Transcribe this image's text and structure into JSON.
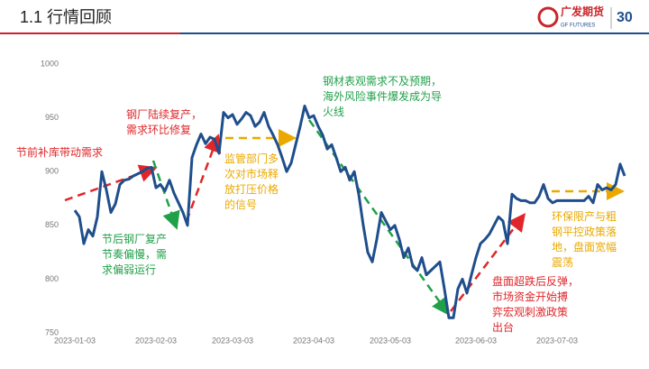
{
  "header": {
    "title": "1.1   行情回顾",
    "logo": {
      "name": "广发期货",
      "sub": "GF FUTURES",
      "anniversary": "30"
    }
  },
  "chart_data": {
    "type": "line",
    "color": "#1f4e8c",
    "x": [
      "2023-01-03",
      null,
      null,
      null,
      null,
      null,
      null,
      null,
      null,
      null,
      null,
      null,
      null,
      null,
      null,
      null,
      null,
      null,
      "2023-02-03",
      null,
      null,
      null,
      null,
      null,
      null,
      null,
      null,
      null,
      null,
      null,
      null,
      null,
      null,
      null,
      null,
      "2023-03-03",
      null,
      null,
      null,
      null,
      null,
      null,
      null,
      null,
      null,
      null,
      null,
      null,
      null,
      null,
      null,
      null,
      null,
      "2023-04-03",
      null,
      null,
      null,
      null,
      null,
      null,
      null,
      null,
      null,
      null,
      null,
      null,
      null,
      null,
      null,
      null,
      "2023-05-03",
      null,
      null,
      null,
      null,
      null,
      null,
      null,
      null,
      null,
      null,
      null,
      null,
      null,
      null,
      null,
      null,
      null,
      null,
      "2023-06-03",
      null,
      null,
      null,
      null,
      null,
      null,
      null,
      null,
      null,
      null,
      null,
      null,
      null,
      null,
      null,
      null,
      null,
      "2023-07-03",
      null,
      null,
      null,
      null,
      null,
      null,
      null,
      null,
      null,
      null,
      null,
      null,
      null,
      null,
      null
    ],
    "values": [
      864,
      858,
      833,
      846,
      840,
      858,
      900,
      883,
      862,
      870,
      888,
      892,
      893,
      896,
      898,
      900,
      903,
      904,
      885,
      888,
      882,
      892,
      880,
      871,
      862,
      850,
      913,
      925,
      935,
      926,
      932,
      930,
      917,
      955,
      950,
      953,
      944,
      949,
      955,
      952,
      942,
      946,
      955,
      942,
      934,
      925,
      913,
      900,
      908,
      925,
      942,
      961,
      950,
      952,
      942,
      934,
      921,
      925,
      913,
      900,
      904,
      892,
      900,
      879,
      850,
      825,
      816,
      837,
      862,
      854,
      846,
      850,
      837,
      820,
      829,
      812,
      808,
      820,
      804,
      808,
      812,
      816,
      791,
      764,
      764,
      791,
      800,
      787,
      804,
      820,
      833,
      837,
      842,
      850,
      858,
      854,
      833,
      879,
      875,
      873,
      873,
      871,
      871,
      877,
      888,
      875,
      871,
      873,
      873,
      873,
      873,
      873,
      873,
      873,
      877,
      871,
      888,
      883,
      885,
      883,
      888,
      907,
      896
    ],
    "ylim": [
      750,
      1000
    ],
    "yticks": [
      750,
      800,
      850,
      900,
      950,
      1000
    ],
    "grid": false,
    "annotations": [
      {
        "color": "#e0262a",
        "lines": [
          "节前补库带动需求"
        ]
      },
      {
        "color": "#e0262a",
        "lines": [
          "钢厂陆续复产，",
          "需求环比修复"
        ]
      },
      {
        "color": "#21a04a",
        "lines": [
          "节后钢厂复产",
          "节奏偏慢，需",
          "求偏弱运行"
        ]
      },
      {
        "color": "#eba900",
        "lines": [
          "监管部门多",
          "次对市场释",
          "放打压价格",
          "的信号"
        ]
      },
      {
        "color": "#21a04a",
        "lines": [
          "钢材表观需求不及预期，",
          "海外风险事件爆发成为导",
          "火线"
        ]
      },
      {
        "color": "#eba900",
        "lines": [
          "环保限产与粗",
          "钢平控政策落",
          "地，盘面宽幅",
          "震荡"
        ]
      },
      {
        "color": "#e0262a",
        "lines": [
          "盘面超跌后反弹，",
          "市场资金开始搏",
          "弈宏观刺激政策",
          "出台"
        ]
      }
    ]
  }
}
